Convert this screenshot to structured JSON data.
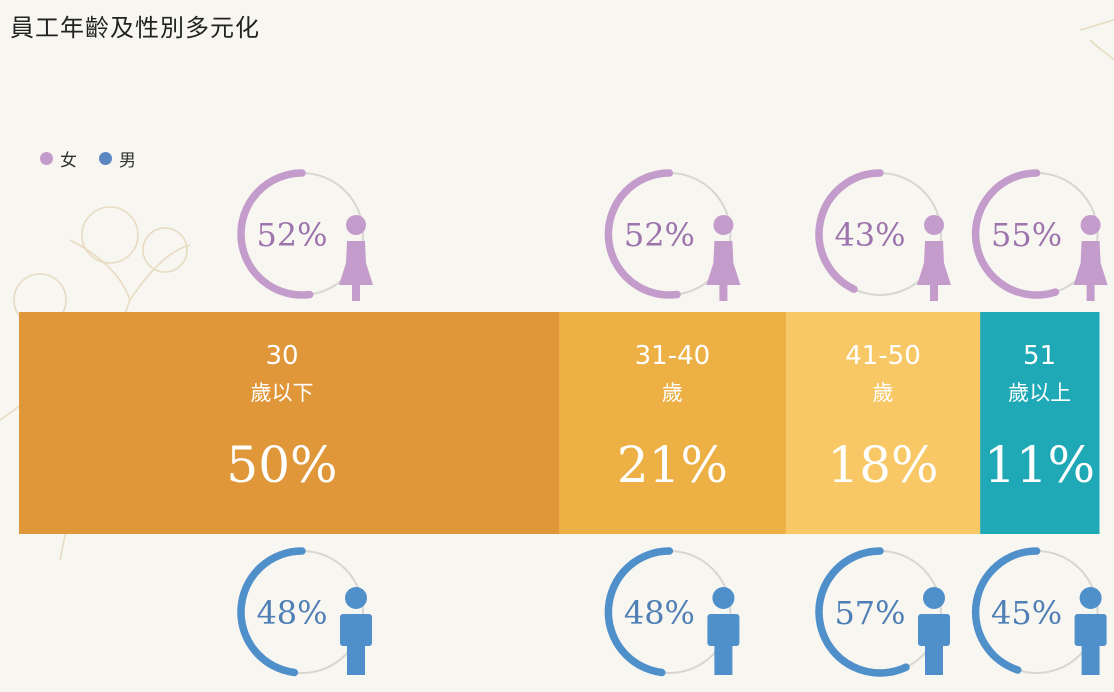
{
  "title": "員工年齡及性別多元化",
  "legend": [
    {
      "label": "女",
      "color": "#c49ccc"
    },
    {
      "label": "男",
      "color": "#5b86c2"
    }
  ],
  "colors": {
    "female": "#c49ccc",
    "female_text": "#9d74ad",
    "male": "#4f8fca",
    "male_text": "#4f7fb5",
    "ring_track": "#d8d6d2"
  },
  "chart_data": {
    "type": "bar",
    "title": "員工年齡及性別多元化",
    "categories": [
      {
        "line1": "30",
        "line2": "歲以下"
      },
      {
        "line1": "31-40",
        "line2": "歲"
      },
      {
        "line1": "41-50",
        "line2": "歲"
      },
      {
        "line1": "51",
        "line2": "歲以上"
      }
    ],
    "age_share": [
      50,
      21,
      18,
      11
    ],
    "age_share_labels": [
      "50%",
      "21%",
      "18%",
      "11%"
    ],
    "segment_colors": [
      "#e0973a",
      "#ecb045",
      "#f8c866",
      "#1fa9b6"
    ],
    "series": [
      {
        "name": "女",
        "values": [
          52,
          52,
          43,
          55
        ],
        "labels": [
          "52%",
          "52%",
          "43%",
          "55%"
        ]
      },
      {
        "name": "男",
        "values": [
          48,
          48,
          57,
          45
        ],
        "labels": [
          "48%",
          "48%",
          "57%",
          "45%"
        ]
      }
    ]
  }
}
